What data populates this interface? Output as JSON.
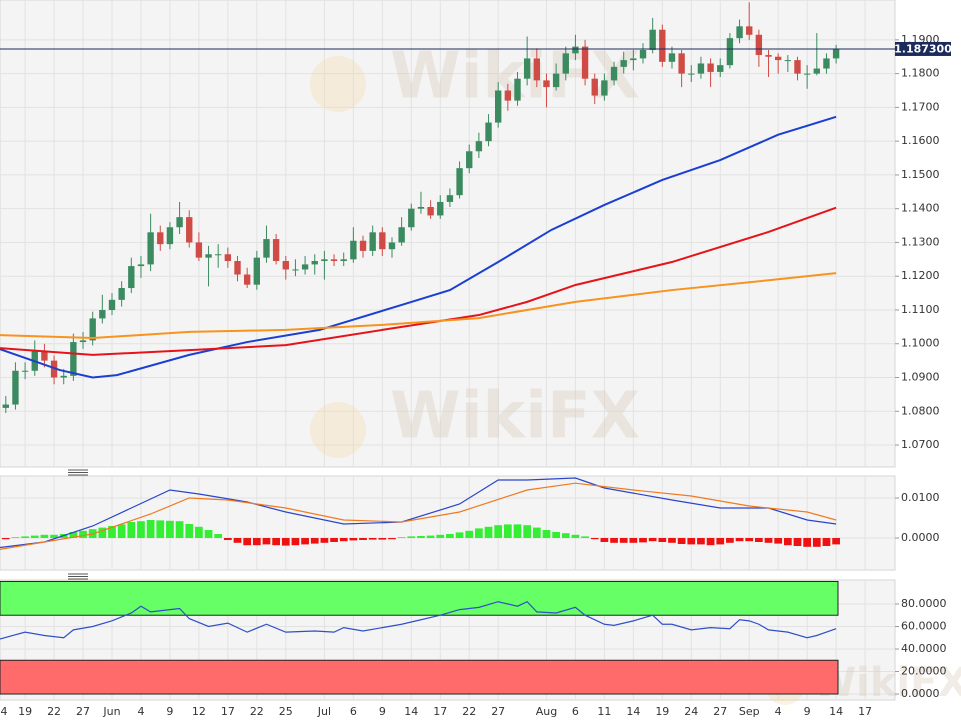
{
  "chart_data": [
    {
      "type": "candlestick",
      "watermark": "WikiFX",
      "xlim": [
        0.4,
        93.1
      ],
      "xticks": [
        {
          "value": 0,
          "label": "4"
        },
        {
          "value": 3,
          "label": "19"
        },
        {
          "value": 6,
          "label": "22"
        },
        {
          "value": 9,
          "label": "27"
        },
        {
          "value": 12,
          "label": "Jun"
        },
        {
          "value": 15,
          "label": "4"
        },
        {
          "value": 18,
          "label": "9"
        },
        {
          "value": 21,
          "label": "12"
        },
        {
          "value": 24,
          "label": "17"
        },
        {
          "value": 27,
          "label": "22"
        },
        {
          "value": 30,
          "label": "25"
        },
        {
          "value": 34,
          "label": "Jul"
        },
        {
          "value": 37,
          "label": "6"
        },
        {
          "value": 40,
          "label": "9"
        },
        {
          "value": 43,
          "label": "14"
        },
        {
          "value": 46,
          "label": "17"
        },
        {
          "value": 49,
          "label": "22"
        },
        {
          "value": 52,
          "label": "27"
        },
        {
          "value": 57,
          "label": "Aug"
        },
        {
          "value": 60,
          "label": "6"
        },
        {
          "value": 63,
          "label": "11"
        },
        {
          "value": 66,
          "label": "14"
        },
        {
          "value": 69,
          "label": "19"
        },
        {
          "value": 72,
          "label": "24"
        },
        {
          "value": 75,
          "label": "27"
        },
        {
          "value": 78,
          "label": "Sep"
        },
        {
          "value": 81,
          "label": "4"
        },
        {
          "value": 84,
          "label": "9"
        },
        {
          "value": 87,
          "label": "14"
        },
        {
          "value": 90,
          "label": "17"
        }
      ],
      "ylim": [
        1.0635,
        1.2018
      ],
      "yticks": [
        {
          "value": 1.19,
          "label": "1.1900"
        },
        {
          "value": 1.18,
          "label": "1.1800"
        },
        {
          "value": 1.17,
          "label": "1.1700"
        },
        {
          "value": 1.16,
          "label": "1.1600"
        },
        {
          "value": 1.15,
          "label": "1.1500"
        },
        {
          "value": 1.14,
          "label": "1.1400"
        },
        {
          "value": 1.13,
          "label": "1.1300"
        },
        {
          "value": 1.12,
          "label": "1.1200"
        },
        {
          "value": 1.11,
          "label": "1.1100"
        },
        {
          "value": 1.1,
          "label": "1.1000"
        },
        {
          "value": 1.09,
          "label": "1.0900"
        },
        {
          "value": 1.08,
          "label": "1.0800"
        },
        {
          "value": 1.07,
          "label": "1.0700"
        }
      ],
      "grid": true,
      "up_color": "#3b8a60",
      "down_color": "#cf4b45",
      "last_price": {
        "value": 1.1873,
        "label": "1.187300"
      },
      "last_price_color": "#1c2b5a",
      "open": [
        1.0795,
        1.081,
        1.082,
        1.092,
        1.092,
        1.098,
        1.095,
        1.09,
        1.0905,
        1.1005,
        1.101,
        1.1075,
        1.11,
        1.113,
        1.1165,
        1.123,
        1.1235,
        1.133,
        1.1295,
        1.1345,
        1.1375,
        1.13,
        1.1255,
        1.1265,
        1.1265,
        1.1245,
        1.1205,
        1.1175,
        1.1255,
        1.131,
        1.1245,
        1.122,
        1.122,
        1.1235,
        1.1245,
        1.125,
        1.1245,
        1.125,
        1.1305,
        1.1275,
        1.133,
        1.128,
        1.13,
        1.1345,
        1.14,
        1.1405,
        1.138,
        1.142,
        1.144,
        1.152,
        1.157,
        1.16,
        1.1655,
        1.175,
        1.172,
        1.1785,
        1.1845,
        1.178,
        1.176,
        1.18,
        1.186,
        1.188,
        1.1785,
        1.1735,
        1.178,
        1.182,
        1.184,
        1.1845,
        1.187,
        1.193,
        1.1835,
        1.186,
        1.18,
        1.18,
        1.183,
        1.1805,
        1.1825,
        1.1905,
        1.194,
        1.1915,
        1.1855,
        1.185,
        1.184,
        1.184,
        1.18,
        1.18,
        1.1815,
        1.1845
      ],
      "high": [
        1.083,
        1.0845,
        1.0945,
        1.0945,
        1.101,
        1.1,
        1.0965,
        1.0925,
        1.103,
        1.1035,
        1.1095,
        1.1145,
        1.115,
        1.1185,
        1.1255,
        1.126,
        1.1385,
        1.135,
        1.136,
        1.142,
        1.1395,
        1.133,
        1.129,
        1.1295,
        1.1285,
        1.126,
        1.1225,
        1.1275,
        1.135,
        1.1325,
        1.126,
        1.125,
        1.126,
        1.1265,
        1.1275,
        1.1265,
        1.127,
        1.1345,
        1.132,
        1.135,
        1.1345,
        1.1315,
        1.1375,
        1.1415,
        1.145,
        1.1425,
        1.144,
        1.146,
        1.154,
        1.159,
        1.1625,
        1.168,
        1.1775,
        1.177,
        1.1805,
        1.191,
        1.1875,
        1.18,
        1.183,
        1.188,
        1.1915,
        1.19,
        1.18,
        1.18,
        1.1835,
        1.1865,
        1.187,
        1.189,
        1.1965,
        1.1945,
        1.188,
        1.187,
        1.1825,
        1.185,
        1.1845,
        1.1845,
        1.192,
        1.196,
        1.2011,
        1.193,
        1.187,
        1.186,
        1.1855,
        1.185,
        1.1825,
        1.192,
        1.186,
        1.1885
      ],
      "low": [
        1.0775,
        1.0795,
        1.0805,
        1.0895,
        1.0905,
        1.093,
        1.088,
        1.088,
        1.089,
        1.0985,
        1.0995,
        1.106,
        1.1085,
        1.111,
        1.115,
        1.1195,
        1.1215,
        1.1275,
        1.128,
        1.1325,
        1.1285,
        1.1245,
        1.117,
        1.1225,
        1.1225,
        1.1185,
        1.1165,
        1.116,
        1.124,
        1.1235,
        1.119,
        1.12,
        1.1205,
        1.1205,
        1.119,
        1.123,
        1.123,
        1.124,
        1.1255,
        1.126,
        1.126,
        1.1255,
        1.129,
        1.1335,
        1.1385,
        1.137,
        1.137,
        1.1405,
        1.143,
        1.1505,
        1.155,
        1.1585,
        1.164,
        1.169,
        1.1705,
        1.1765,
        1.176,
        1.17,
        1.175,
        1.178,
        1.184,
        1.1765,
        1.171,
        1.172,
        1.1765,
        1.18,
        1.181,
        1.183,
        1.186,
        1.182,
        1.1815,
        1.176,
        1.1775,
        1.1785,
        1.176,
        1.179,
        1.1815,
        1.189,
        1.19,
        1.182,
        1.179,
        1.18,
        1.1805,
        1.178,
        1.1755,
        1.1795,
        1.18,
        1.183
      ],
      "close": [
        1.081,
        1.082,
        1.092,
        1.092,
        1.098,
        1.095,
        1.09,
        1.0905,
        1.1005,
        1.101,
        1.1075,
        1.11,
        1.113,
        1.1165,
        1.123,
        1.1235,
        1.133,
        1.1295,
        1.1345,
        1.1375,
        1.13,
        1.1255,
        1.1265,
        1.1265,
        1.1245,
        1.1205,
        1.1175,
        1.1255,
        1.131,
        1.1245,
        1.122,
        1.122,
        1.1235,
        1.1245,
        1.125,
        1.1245,
        1.125,
        1.1305,
        1.1275,
        1.133,
        1.128,
        1.13,
        1.1345,
        1.14,
        1.1405,
        1.138,
        1.142,
        1.144,
        1.152,
        1.157,
        1.16,
        1.1655,
        1.175,
        1.172,
        1.1785,
        1.1845,
        1.178,
        1.176,
        1.18,
        1.186,
        1.188,
        1.1785,
        1.1735,
        1.178,
        1.182,
        1.184,
        1.1845,
        1.187,
        1.193,
        1.1835,
        1.186,
        1.18,
        1.18,
        1.183,
        1.1805,
        1.1825,
        1.1905,
        1.194,
        1.1915,
        1.1855,
        1.185,
        1.184,
        1.184,
        1.18,
        1.18,
        1.1815,
        1.1845,
        1.1873
      ],
      "series": [
        {
          "color": "#1a3fd1",
          "x": [
            0,
            6.6,
            10,
            12.5,
            20,
            26,
            33.5,
            42,
            47,
            52,
            57.5,
            63,
            69,
            75,
            81,
            87
          ],
          "values": [
            1.0988,
            1.0922,
            1.09,
            1.0907,
            1.0967,
            1.1005,
            1.1041,
            1.1115,
            1.1159,
            1.1242,
            1.1337,
            1.1411,
            1.1485,
            1.1544,
            1.1619,
            1.1672
          ]
        },
        {
          "color": "#e5141a",
          "x": [
            0,
            10,
            20,
            30,
            40,
            50,
            55,
            60,
            70,
            80,
            87
          ],
          "values": [
            1.0988,
            1.0967,
            1.0981,
            1.0996,
            1.1041,
            1.1085,
            1.1124,
            1.1174,
            1.1242,
            1.1331,
            1.1403
          ]
        },
        {
          "color": "#f7931e",
          "x": [
            0,
            10,
            20,
            30,
            40,
            50,
            60,
            70,
            80,
            87
          ],
          "values": [
            1.1026,
            1.1017,
            1.1035,
            1.1041,
            1.1056,
            1.1076,
            1.1124,
            1.1159,
            1.1188,
            1.1209
          ]
        }
      ]
    },
    {
      "type": "macd",
      "ylim": [
        -0.008,
        0.0155
      ],
      "yticks": [
        {
          "value": 0.01,
          "label": "0.0100"
        },
        {
          "value": 0,
          "label": "0.0000"
        }
      ],
      "up_color": "#33ee33",
      "down_color": "#ee1111",
      "histogram": [
        -0.0004,
        -0.0003,
        0.0002,
        0.0004,
        0.0006,
        0.0008,
        0.0008,
        0.001,
        0.0015,
        0.0018,
        0.0022,
        0.0026,
        0.003,
        0.0034,
        0.004,
        0.0042,
        0.0045,
        0.0044,
        0.0043,
        0.0042,
        0.0035,
        0.0028,
        0.002,
        0.001,
        -0.0005,
        -0.0012,
        -0.0018,
        -0.0018,
        -0.0016,
        -0.0018,
        -0.0019,
        -0.0018,
        -0.0016,
        -0.0014,
        -0.0012,
        -0.001,
        -0.0008,
        -0.0006,
        -0.0005,
        -0.0004,
        -0.0004,
        -0.0003,
        0.0002,
        0.0004,
        0.0005,
        0.0006,
        0.0008,
        0.001,
        0.0014,
        0.0018,
        0.0024,
        0.0028,
        0.0032,
        0.0034,
        0.0034,
        0.0032,
        0.0026,
        0.002,
        0.0015,
        0.0012,
        0.0008,
        0.0004,
        -0.0003,
        -0.001,
        -0.0012,
        -0.0012,
        -0.0012,
        -0.0011,
        -0.0008,
        -0.001,
        -0.0012,
        -0.0015,
        -0.0016,
        -0.0016,
        -0.0018,
        -0.0016,
        -0.0012,
        -0.0008,
        -0.0008,
        -0.001,
        -0.0012,
        -0.0014,
        -0.0018,
        -0.002,
        -0.0022,
        -0.0022,
        -0.002,
        -0.0016
      ],
      "series": [
        {
          "color": "#2a45cc",
          "x": [
            0,
            5,
            10,
            14,
            18,
            21,
            26,
            30,
            36,
            42,
            48,
            52,
            55,
            60,
            63,
            70,
            75,
            80,
            84,
            87
          ],
          "values": [
            -0.0025,
            -0.001,
            0.003,
            0.0075,
            0.012,
            0.011,
            0.009,
            0.0065,
            0.0035,
            0.004,
            0.0085,
            0.0145,
            0.0145,
            0.015,
            0.0125,
            0.0095,
            0.0075,
            0.0075,
            0.0045,
            0.0035
          ]
        },
        {
          "color": "#f07a20",
          "x": [
            0,
            10,
            16,
            20,
            24,
            30,
            36,
            42,
            48,
            55,
            60,
            66,
            72,
            78,
            84,
            87
          ],
          "values": [
            -0.003,
            0.001,
            0.006,
            0.01,
            0.0095,
            0.0075,
            0.0045,
            0.004,
            0.0065,
            0.012,
            0.0137,
            0.012,
            0.0105,
            0.008,
            0.0065,
            0.0045
          ]
        }
      ]
    },
    {
      "type": "rsi",
      "ylim": [
        -5.3,
        101.3
      ],
      "yticks": [
        {
          "value": 80,
          "label": "80.0000"
        },
        {
          "value": 60,
          "label": "60.0000"
        },
        {
          "value": 40,
          "label": "40.0000"
        },
        {
          "value": 20,
          "label": "20.0000"
        },
        {
          "value": 0,
          "label": "0.0000"
        }
      ],
      "bands": [
        {
          "range": [
            70,
            100
          ],
          "color": "#66ff66"
        },
        {
          "range": [
            0,
            30
          ],
          "color": "#ff6b6b"
        }
      ],
      "series": [
        {
          "color": "#2f4fc8",
          "x": [
            0,
            3,
            5,
            7,
            8,
            10,
            12,
            14,
            15,
            16,
            18,
            19,
            20,
            22,
            24,
            26,
            28,
            30,
            33,
            35,
            36,
            38,
            40,
            42,
            44,
            46,
            48,
            50,
            52,
            54,
            55,
            56,
            58,
            60,
            61,
            63,
            64,
            66,
            68,
            69,
            70,
            72,
            74,
            76,
            77,
            78,
            79,
            80,
            82,
            84,
            85,
            87
          ],
          "values": [
            48,
            55,
            52,
            50,
            57,
            60,
            65,
            72,
            78,
            73,
            75,
            76,
            67,
            60,
            63,
            55,
            62,
            55,
            56,
            55,
            59,
            56,
            59,
            62,
            66,
            70,
            75,
            77,
            82,
            78,
            82,
            73,
            72,
            77,
            70,
            62,
            61,
            65,
            70,
            62,
            62,
            57,
            59,
            58,
            66,
            65,
            62,
            57,
            55,
            50,
            52,
            58
          ]
        }
      ]
    }
  ]
}
